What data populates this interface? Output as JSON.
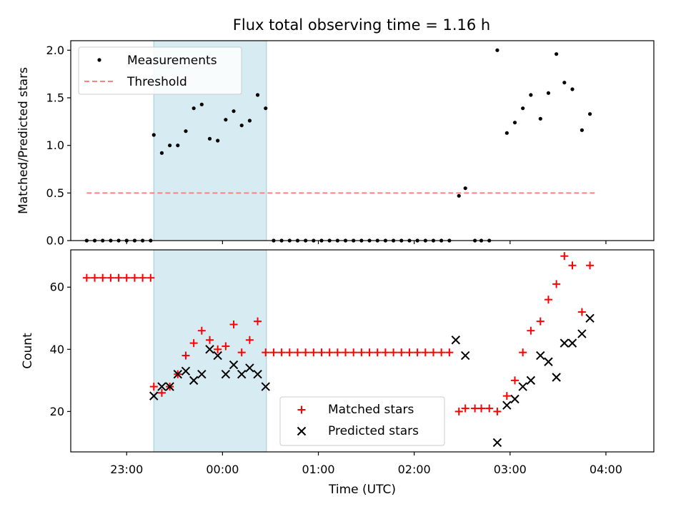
{
  "chart_data": {
    "title": "Flux total observing time = 1.16 h",
    "shared_x": {
      "label": "Time (UTC)",
      "range_minutes": [
        -95,
        270
      ],
      "note_origin": "minutes relative to 00:00 UTC",
      "ticks": [
        {
          "label": "23:00",
          "value": -60
        },
        {
          "label": "00:00",
          "value": 0
        },
        {
          "label": "01:00",
          "value": 60
        },
        {
          "label": "02:00",
          "value": 120
        },
        {
          "label": "03:00",
          "value": 180
        },
        {
          "label": "04:00",
          "value": 240
        }
      ]
    },
    "shaded_interval_minutes": [
      -43,
      27.5
    ],
    "panels": [
      {
        "type": "scatter",
        "ylabel": "Matched/Predicted stars",
        "ylim": [
          0,
          2.1
        ],
        "yticks": [
          "0.0",
          "0.5",
          "1.0",
          "1.5",
          "2.0"
        ],
        "ytick_values": [
          0,
          0.5,
          1.0,
          1.5,
          2.0
        ],
        "legend": {
          "position": "upper-left",
          "entries": [
            "Measurements",
            "Threshold"
          ]
        },
        "threshold": {
          "name": "Threshold",
          "value": 0.5,
          "x_range": [
            -85,
            233
          ],
          "color": "#ff8080"
        },
        "series": [
          {
            "name": "Measurements",
            "color": "#000000",
            "marker": "dot",
            "points": [
              [
                -85,
                0
              ],
              [
                -80,
                0
              ],
              [
                -75,
                0
              ],
              [
                -70,
                0
              ],
              [
                -65,
                0
              ],
              [
                -60,
                0
              ],
              [
                -55,
                0
              ],
              [
                -50,
                0
              ],
              [
                -45,
                0
              ],
              [
                -43,
                1.11
              ],
              [
                -38,
                0.92
              ],
              [
                -33,
                1.0
              ],
              [
                -28,
                1.0
              ],
              [
                -23,
                1.15
              ],
              [
                -18,
                1.39
              ],
              [
                -13,
                1.43
              ],
              [
                -8,
                1.07
              ],
              [
                -3,
                1.05
              ],
              [
                2,
                1.27
              ],
              [
                7,
                1.36
              ],
              [
                12,
                1.21
              ],
              [
                17,
                1.26
              ],
              [
                22,
                1.53
              ],
              [
                27,
                1.39
              ],
              [
                32,
                0
              ],
              [
                37,
                0
              ],
              [
                42,
                0
              ],
              [
                47,
                0
              ],
              [
                52,
                0
              ],
              [
                57,
                0
              ],
              [
                62,
                0
              ],
              [
                67,
                0
              ],
              [
                72,
                0
              ],
              [
                77,
                0
              ],
              [
                82,
                0
              ],
              [
                87,
                0
              ],
              [
                92,
                0
              ],
              [
                97,
                0
              ],
              [
                102,
                0
              ],
              [
                107,
                0
              ],
              [
                112,
                0
              ],
              [
                117,
                0
              ],
              [
                122,
                0
              ],
              [
                127,
                0
              ],
              [
                132,
                0
              ],
              [
                137,
                0
              ],
              [
                142,
                0
              ],
              [
                148,
                0.47
              ],
              [
                152,
                0.55
              ],
              [
                158,
                0
              ],
              [
                162,
                0
              ],
              [
                167,
                0
              ],
              [
                172,
                2.0
              ],
              [
                178,
                1.13
              ],
              [
                183,
                1.24
              ],
              [
                188,
                1.39
              ],
              [
                193,
                1.53
              ],
              [
                199,
                1.28
              ],
              [
                204,
                1.55
              ],
              [
                209,
                1.96
              ],
              [
                214,
                1.66
              ],
              [
                219,
                1.59
              ],
              [
                225,
                1.16
              ],
              [
                230,
                1.33
              ]
            ]
          }
        ]
      },
      {
        "type": "scatter",
        "ylabel": "Count",
        "ylim": [
          7,
          72
        ],
        "yticks": [
          "20",
          "40",
          "60"
        ],
        "ytick_values": [
          20,
          40,
          60
        ],
        "legend": {
          "position": "lower-center",
          "entries": [
            "Matched stars",
            "Predicted stars"
          ]
        },
        "series": [
          {
            "name": "Matched stars",
            "color": "#ff0000",
            "marker": "plus",
            "points": [
              [
                -85,
                63
              ],
              [
                -80,
                63
              ],
              [
                -75,
                63
              ],
              [
                -70,
                63
              ],
              [
                -65,
                63
              ],
              [
                -60,
                63
              ],
              [
                -55,
                63
              ],
              [
                -50,
                63
              ],
              [
                -45,
                63
              ],
              [
                -43,
                28
              ],
              [
                -38,
                26
              ],
              [
                -33,
                28
              ],
              [
                -28,
                32
              ],
              [
                -23,
                38
              ],
              [
                -18,
                42
              ],
              [
                -13,
                46
              ],
              [
                -8,
                43
              ],
              [
                -3,
                40
              ],
              [
                2,
                41
              ],
              [
                7,
                48
              ],
              [
                12,
                39
              ],
              [
                17,
                43
              ],
              [
                22,
                49
              ],
              [
                27,
                39
              ],
              [
                32,
                39
              ],
              [
                37,
                39
              ],
              [
                42,
                39
              ],
              [
                47,
                39
              ],
              [
                52,
                39
              ],
              [
                57,
                39
              ],
              [
                62,
                39
              ],
              [
                67,
                39
              ],
              [
                72,
                39
              ],
              [
                77,
                39
              ],
              [
                82,
                39
              ],
              [
                87,
                39
              ],
              [
                92,
                39
              ],
              [
                97,
                39
              ],
              [
                102,
                39
              ],
              [
                107,
                39
              ],
              [
                112,
                39
              ],
              [
                117,
                39
              ],
              [
                122,
                39
              ],
              [
                127,
                39
              ],
              [
                132,
                39
              ],
              [
                137,
                39
              ],
              [
                142,
                39
              ],
              [
                148,
                20
              ],
              [
                152,
                21
              ],
              [
                158,
                21
              ],
              [
                162,
                21
              ],
              [
                167,
                21
              ],
              [
                172,
                20
              ],
              [
                178,
                25
              ],
              [
                183,
                30
              ],
              [
                188,
                39
              ],
              [
                193,
                46
              ],
              [
                199,
                49
              ],
              [
                204,
                56
              ],
              [
                209,
                61
              ],
              [
                214,
                70
              ],
              [
                219,
                67
              ],
              [
                225,
                52
              ],
              [
                230,
                67
              ]
            ]
          },
          {
            "name": "Predicted stars",
            "color": "#000000",
            "marker": "x",
            "points": [
              [
                -43,
                25
              ],
              [
                -38,
                28
              ],
              [
                -33,
                28
              ],
              [
                -28,
                32
              ],
              [
                -23,
                33
              ],
              [
                -18,
                30
              ],
              [
                -13,
                32
              ],
              [
                -8,
                40
              ],
              [
                -3,
                38
              ],
              [
                2,
                32
              ],
              [
                7,
                35
              ],
              [
                12,
                32
              ],
              [
                17,
                34
              ],
              [
                22,
                32
              ],
              [
                27,
                28
              ],
              [
                146,
                43
              ],
              [
                152,
                38
              ],
              [
                172,
                10
              ],
              [
                178,
                22
              ],
              [
                183,
                24
              ],
              [
                188,
                28
              ],
              [
                193,
                30
              ],
              [
                199,
                38
              ],
              [
                204,
                36
              ],
              [
                209,
                31
              ],
              [
                214,
                42
              ],
              [
                219,
                42
              ],
              [
                225,
                45
              ],
              [
                230,
                50
              ]
            ]
          }
        ]
      }
    ]
  }
}
